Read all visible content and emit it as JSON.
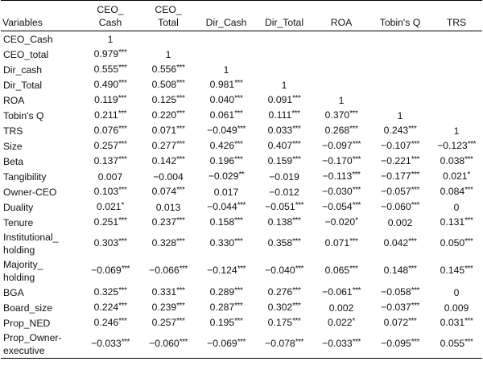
{
  "table": {
    "headers": [
      "Variables",
      "CEO_\nCash",
      "CEO_\nTotal",
      "Dir_Cash",
      "Dir_Total",
      "ROA",
      "Tobin's Q",
      "TRS"
    ],
    "rows": [
      {
        "var": "CEO_Cash",
        "cells": [
          "1",
          "",
          "",
          "",
          "",
          "",
          ""
        ]
      },
      {
        "var": "CEO_total",
        "cells": [
          "0.979***",
          "1",
          "",
          "",
          "",
          "",
          ""
        ]
      },
      {
        "var": "Dir_cash",
        "cells": [
          "0.555***",
          "0.556***",
          "1",
          "",
          "",
          "",
          ""
        ]
      },
      {
        "var": "Dir_Total",
        "cells": [
          "0.490***",
          "0.508***",
          "0.981***",
          "1",
          "",
          "",
          ""
        ]
      },
      {
        "var": "ROA",
        "cells": [
          "0.119***",
          "0.125***",
          "0.040***",
          "0.091***",
          "1",
          "",
          ""
        ]
      },
      {
        "var": "Tobin's Q",
        "cells": [
          "0.211***",
          "0.220***",
          "0.061***",
          "0.111***",
          "0.370***",
          "1",
          ""
        ]
      },
      {
        "var": "TRS",
        "cells": [
          "0.076***",
          "0.071***",
          "−0.049***",
          "0.033***",
          "0.268***",
          "0.243***",
          "1"
        ]
      },
      {
        "var": "Size",
        "cells": [
          "0.257***",
          "0.277***",
          "0.426***",
          "0.407***",
          "−0.097***",
          "−0.107***",
          "−0.123***"
        ]
      },
      {
        "var": "Beta",
        "cells": [
          "0.137***",
          "0.142***",
          "0.196***",
          "0.159***",
          "−0.170***",
          "−0.221***",
          "0.038***"
        ]
      },
      {
        "var": "Tangibility",
        "cells": [
          "0.007",
          "−0.004",
          "−0.029**",
          "−0.019",
          "−0.113***",
          "−0.177***",
          "0.021*"
        ]
      },
      {
        "var": "Owner-CEO",
        "cells": [
          "0.103***",
          "0.074***",
          "0.017",
          "−0.012",
          "−0.030***",
          "−0.057***",
          "0.084***"
        ]
      },
      {
        "var": "Duality",
        "cells": [
          "0.021*",
          "0.013",
          "−0.044***",
          "−0.051***",
          "−0.054***",
          "−0.060***",
          "0"
        ]
      },
      {
        "var": "Tenure",
        "cells": [
          "0.251***",
          "0.237***",
          "0.158***",
          "0.138***",
          "−0.020*",
          "0.002",
          "0.131***"
        ]
      },
      {
        "var": "Institutional_\nholding",
        "cells": [
          "0.303***",
          "0.328***",
          "0.330***",
          "0.358***",
          "0.071***",
          "0.042***",
          "0.050***"
        ]
      },
      {
        "var": "Majority_\nholding",
        "cells": [
          "−0.069***",
          "−0.066***",
          "−0.124***",
          "−0.040***",
          "0.065***",
          "0.148***",
          "0.145***"
        ]
      },
      {
        "var": "BGA",
        "cells": [
          "0.325***",
          "0.331***",
          "0.289***",
          "0.276***",
          "−0.061***",
          "−0.058***",
          "0"
        ]
      },
      {
        "var": "Board_size",
        "cells": [
          "0.224***",
          "0.239***",
          "0.287***",
          "0.302***",
          "0.002",
          "−0.037***",
          "0.009"
        ]
      },
      {
        "var": "Prop_NED",
        "cells": [
          "0.246***",
          "0.257***",
          "0.195***",
          "0.175***",
          "0.022*",
          "0.072***",
          "0.031***"
        ]
      },
      {
        "var": "Prop_Owner-\nexecutive",
        "cells": [
          "−0.033***",
          "−0.060***",
          "−0.069***",
          "−0.078***",
          "−0.033***",
          "−0.095***",
          "0.055***"
        ]
      }
    ]
  }
}
